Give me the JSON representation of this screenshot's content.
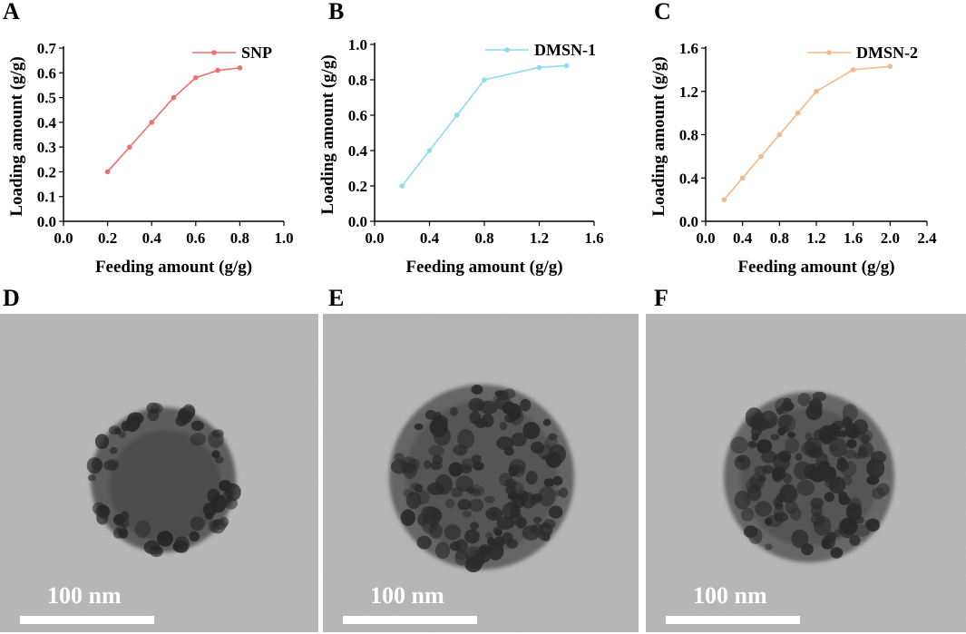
{
  "panel_labels": [
    "A",
    "B",
    "C",
    "D",
    "E",
    "F"
  ],
  "chart_data": [
    {
      "type": "line",
      "panel": "A",
      "xlabel": "Feeding amount (g/g)",
      "ylabel": "Loading amount (g/g)",
      "xlim": [
        0.0,
        1.0
      ],
      "ylim": [
        0.0,
        0.7
      ],
      "xticks": [
        "0.0",
        "0.2",
        "0.4",
        "0.6",
        "0.8",
        "1.0"
      ],
      "yticks": [
        "0.0",
        "0.1",
        "0.2",
        "0.3",
        "0.4",
        "0.5",
        "0.6",
        "0.7"
      ],
      "grid": false,
      "legend_position": "top-right",
      "series": [
        {
          "name": "SNP",
          "color": "#ef6f6f",
          "x": [
            0.2,
            0.3,
            0.4,
            0.5,
            0.6,
            0.7,
            0.8
          ],
          "y": [
            0.2,
            0.3,
            0.4,
            0.5,
            0.58,
            0.61,
            0.62
          ]
        }
      ]
    },
    {
      "type": "line",
      "panel": "B",
      "xlabel": "Feeding amount (g/g)",
      "ylabel": "Loading amount (g/g)",
      "xlim": [
        0.0,
        1.6
      ],
      "ylim": [
        0.0,
        1.0
      ],
      "xticks": [
        "0.0",
        "0.4",
        "0.8",
        "1.2",
        "1.6"
      ],
      "yticks": [
        "0.0",
        "0.2",
        "0.4",
        "0.6",
        "0.8",
        "1.0"
      ],
      "grid": false,
      "legend_position": "top-right",
      "series": [
        {
          "name": "DMSN-1",
          "color": "#8fdcf2",
          "x": [
            0.2,
            0.4,
            0.6,
            0.8,
            1.2,
            1.4
          ],
          "y": [
            0.2,
            0.4,
            0.6,
            0.8,
            0.87,
            0.88
          ]
        }
      ]
    },
    {
      "type": "line",
      "panel": "C",
      "xlabel": "Feeding amount (g/g)",
      "ylabel": "Loading amount (g/g)",
      "xlim": [
        0.0,
        2.4
      ],
      "ylim": [
        0.0,
        1.6
      ],
      "xticks": [
        "0.0",
        "0.4",
        "0.8",
        "1.2",
        "1.6",
        "2.0",
        "2.4"
      ],
      "yticks": [
        "0.0",
        "0.4",
        "0.8",
        "1.2",
        "1.6"
      ],
      "grid": false,
      "legend_position": "top-right",
      "series": [
        {
          "name": "DMSN-2",
          "color": "#f5b88a",
          "x": [
            0.2,
            0.4,
            0.6,
            0.8,
            1.0,
            1.2,
            1.6,
            2.0
          ],
          "y": [
            0.2,
            0.4,
            0.6,
            0.8,
            1.0,
            1.2,
            1.4,
            1.43
          ]
        }
      ]
    }
  ],
  "tem_images": [
    {
      "panel": "D",
      "scale_label": "100 nm",
      "background": "#b6b6b6"
    },
    {
      "panel": "E",
      "scale_label": "100 nm",
      "background": "#b5b5b5"
    },
    {
      "panel": "F",
      "scale_label": "100 nm",
      "background": "#b6b6b6"
    }
  ]
}
